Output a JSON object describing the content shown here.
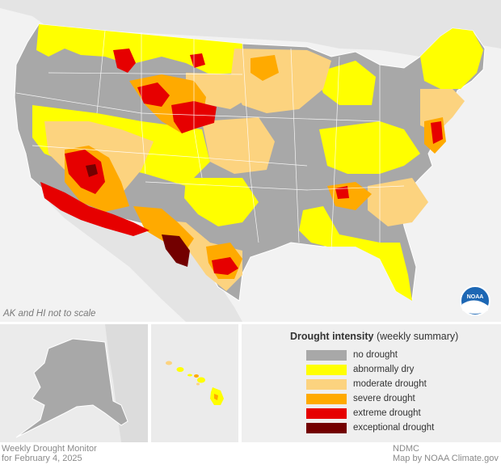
{
  "colors": {
    "no_drought": "#a8a8a8",
    "abnormally_dry": "#ffff00",
    "moderate_drought": "#fcd37f",
    "severe_drought": "#ffaa00",
    "extreme_drought": "#e60000",
    "exceptional_drought": "#730000",
    "background": "#e9e9e9"
  },
  "map": {
    "note": "AK and HI not to scale",
    "logo_text": "NOAA"
  },
  "legend": {
    "title_bold": "Drought intensity",
    "title_rest": " (weekly summary)",
    "items": [
      {
        "label": "no drought",
        "color": "#a8a8a8"
      },
      {
        "label": "abnormally dry",
        "color": "#ffff00"
      },
      {
        "label": "moderate drought",
        "color": "#fcd37f"
      },
      {
        "label": "severe drought",
        "color": "#ffaa00"
      },
      {
        "label": "extreme drought",
        "color": "#e60000"
      },
      {
        "label": "exceptional drought",
        "color": "#730000"
      }
    ]
  },
  "footer": {
    "left_line1": "Weekly Drought Monitor",
    "left_line2": "for February 4, 2025",
    "right_line1": "NDMC",
    "right_line2": "Map by NOAA Climate.gov"
  }
}
